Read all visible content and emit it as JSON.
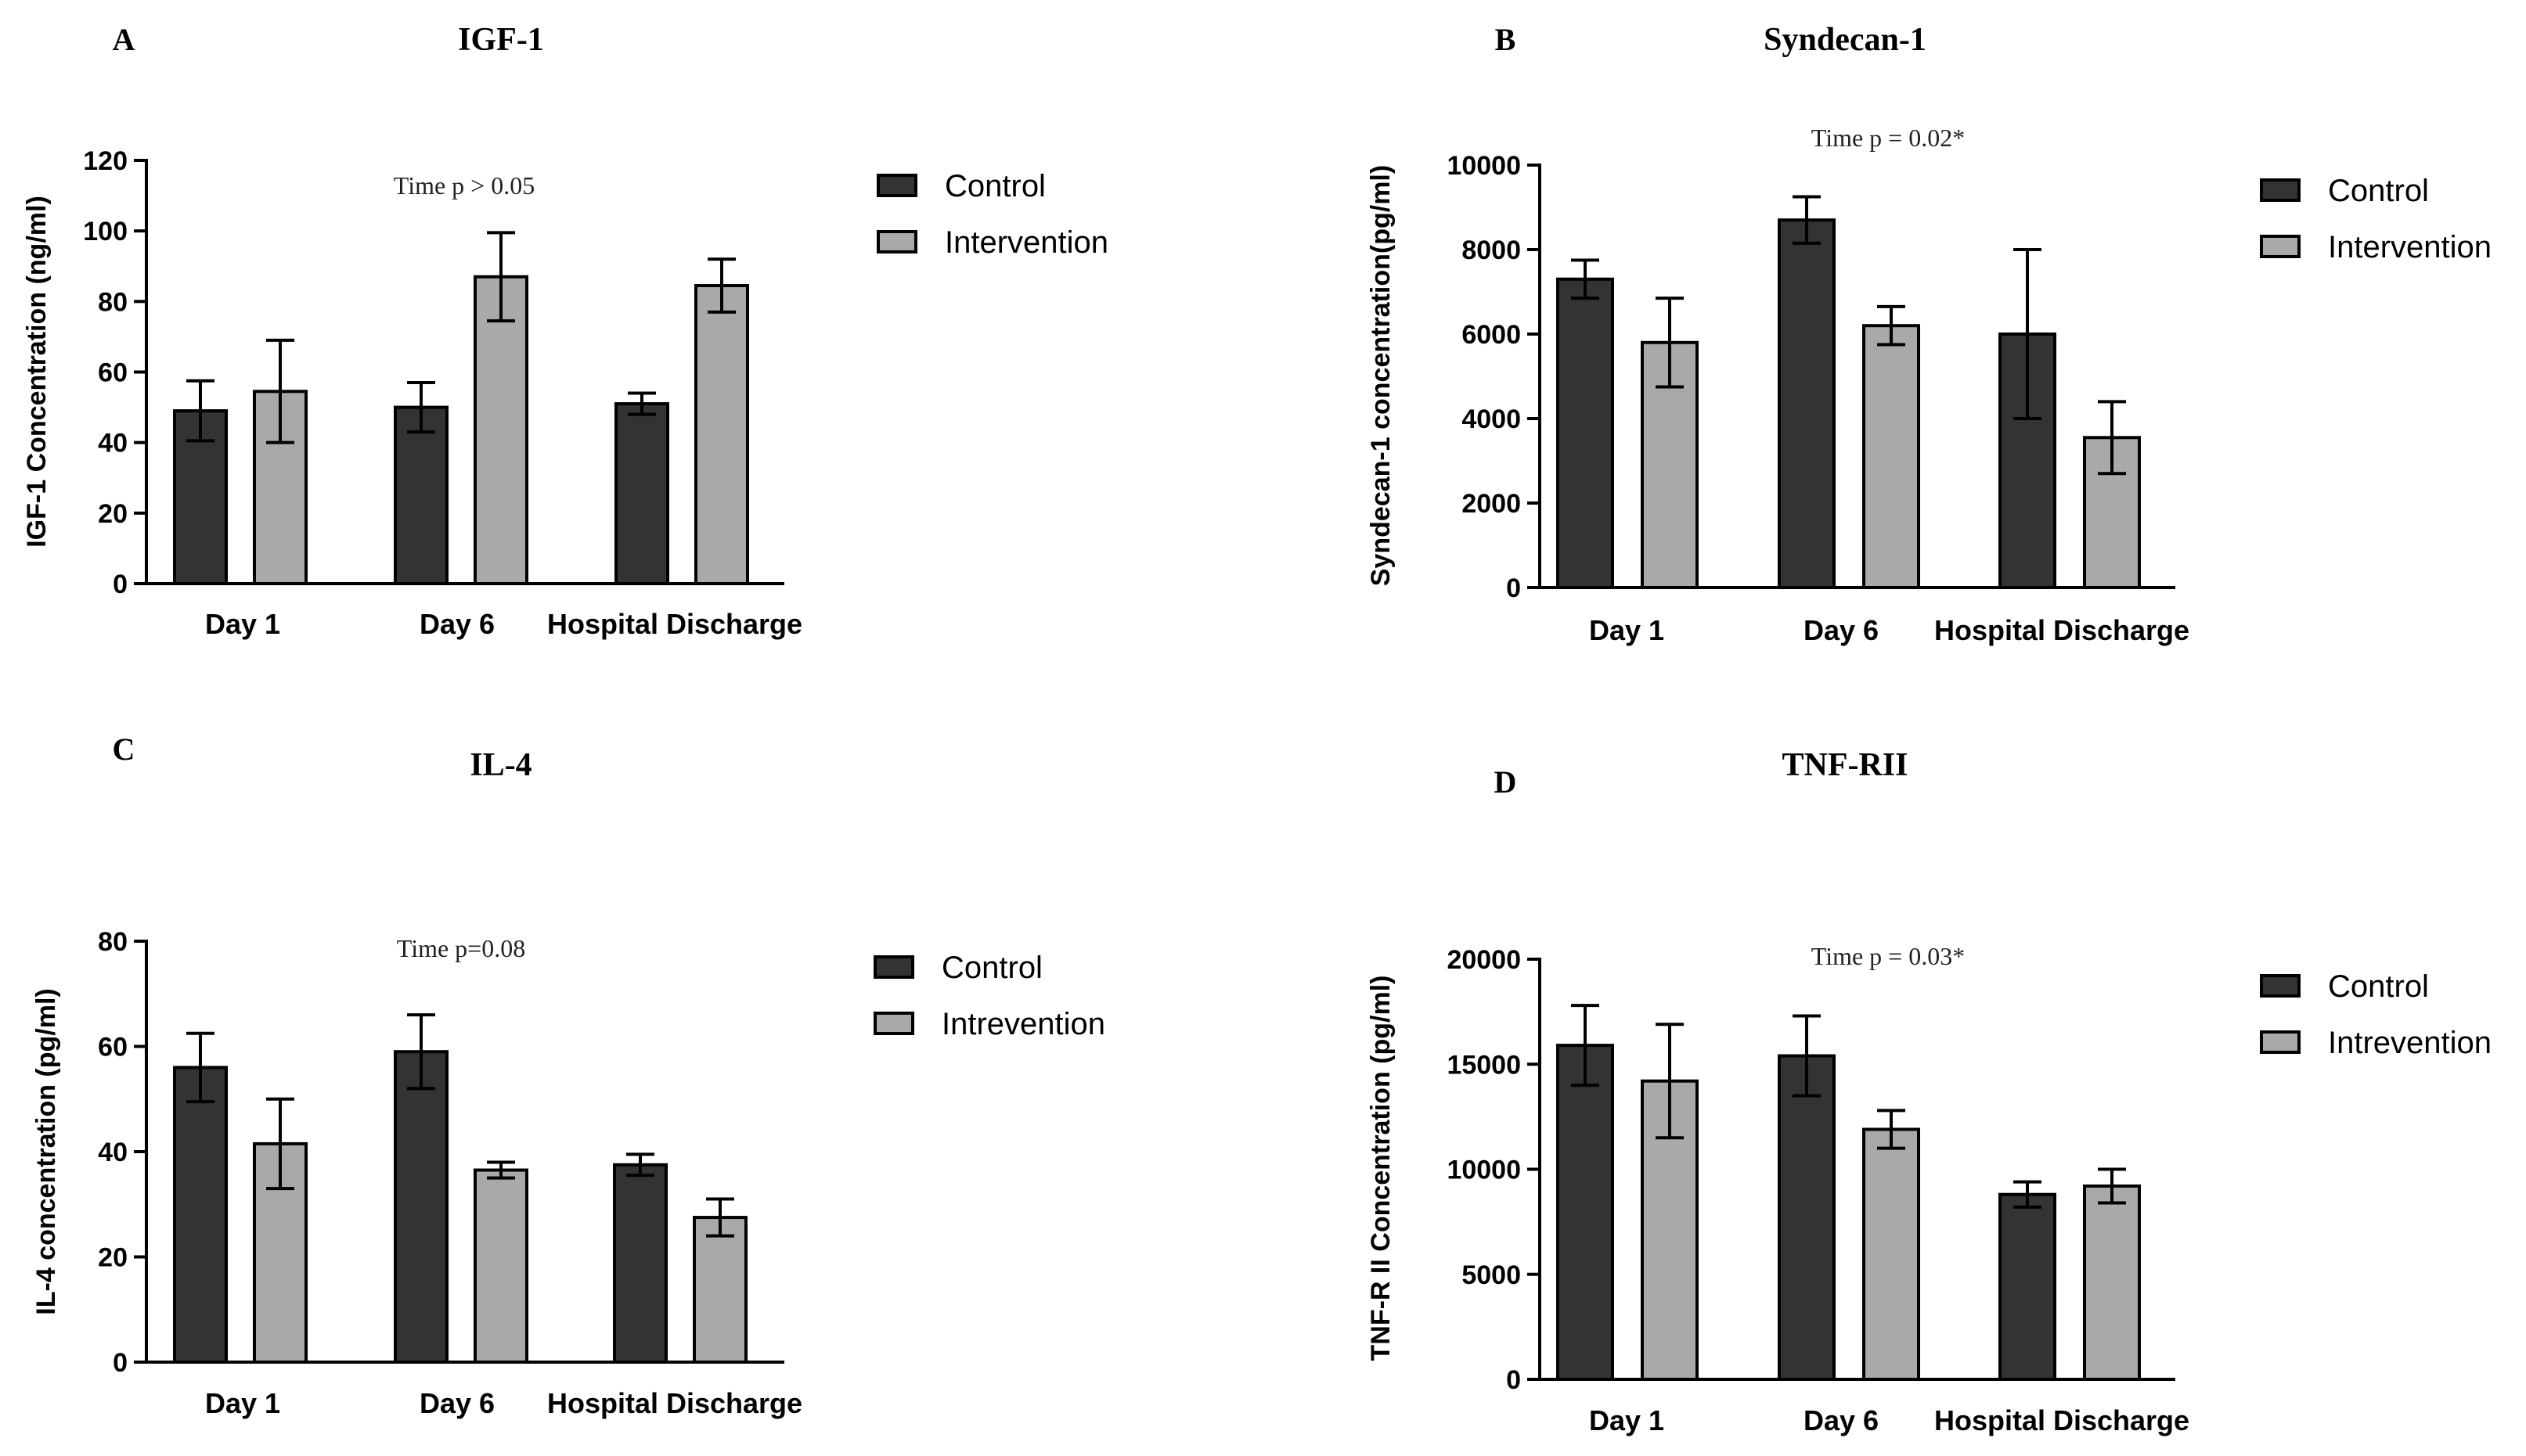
{
  "chart_data": [
    {
      "type": "bar",
      "panel_letter": "A",
      "title": "IGF-1",
      "annotation": "Time p > 0.05",
      "ylabel": "IGF-1 Concentration (ng/ml)",
      "categories": [
        "Day 1",
        "Day 6",
        "Hospital Discharge"
      ],
      "ylim": [
        0,
        120
      ],
      "yticks": [
        "0",
        "20",
        "40",
        "60",
        "80",
        "100",
        "120"
      ],
      "series": [
        {
          "name": "Control",
          "color": "#333333",
          "values": [
            49,
            50,
            51
          ],
          "errors": [
            8.5,
            7,
            3
          ]
        },
        {
          "name": "Intervention",
          "color": "#a9a9a9",
          "values": [
            54.5,
            87,
            84.5
          ],
          "errors": [
            14.5,
            12.5,
            7.5
          ]
        }
      ],
      "legend": [
        "Control",
        "Intervention"
      ]
    },
    {
      "type": "bar",
      "panel_letter": "B",
      "title": "Syndecan-1",
      "annotation": "Time p = 0.02*",
      "ylabel": "Syndecan-1 concentration(pg/ml)",
      "categories": [
        "Day 1",
        "Day 6",
        "Hospital Discharge"
      ],
      "ylim": [
        0,
        10000
      ],
      "yticks": [
        "0",
        "2000",
        "4000",
        "6000",
        "8000",
        "10000"
      ],
      "series": [
        {
          "name": "Control",
          "color": "#333333",
          "values": [
            7300,
            8700,
            6000
          ],
          "errors": [
            450,
            550,
            2000
          ]
        },
        {
          "name": "Intervention",
          "color": "#a9a9a9",
          "values": [
            5800,
            6200,
            3550
          ],
          "errors": [
            1050,
            450,
            850
          ]
        }
      ],
      "legend": [
        "Control",
        "Intervention"
      ]
    },
    {
      "type": "bar",
      "panel_letter": "C",
      "title": "IL-4",
      "annotation": "Time p=0.08",
      "ylabel": "IL-4 concentration (pg/ml)",
      "categories": [
        "Day 1",
        "Day 6",
        "Hospital Discharge"
      ],
      "ylim": [
        0,
        80
      ],
      "yticks": [
        "0",
        "20",
        "40",
        "60",
        "80"
      ],
      "series": [
        {
          "name": "Control",
          "color": "#333333",
          "values": [
            56,
            59,
            37.5
          ],
          "errors": [
            6.5,
            7,
            2
          ]
        },
        {
          "name": "Intrevention",
          "color": "#a9a9a9",
          "values": [
            41.5,
            36.5,
            27.5
          ],
          "errors": [
            8.5,
            1.5,
            3.5
          ]
        }
      ],
      "legend": [
        "Control",
        "Intrevention"
      ]
    },
    {
      "type": "bar",
      "panel_letter": "D",
      "title": "TNF-RII",
      "annotation": "Time p = 0.03*",
      "ylabel": "TNF-R II Concentration (pg/ml)",
      "categories": [
        "Day 1",
        "Day 6",
        "Hospital Discharge"
      ],
      "ylim": [
        0,
        20000
      ],
      "yticks": [
        "0",
        "5000",
        "10000",
        "15000",
        "20000"
      ],
      "series": [
        {
          "name": "Control",
          "color": "#333333",
          "values": [
            15900,
            15400,
            8800
          ],
          "errors": [
            1900,
            1900,
            600
          ]
        },
        {
          "name": "Intrevention",
          "color": "#a9a9a9",
          "values": [
            14200,
            11900,
            9200
          ],
          "errors": [
            2700,
            900,
            800
          ]
        }
      ],
      "legend": [
        "Control",
        "Intrevention"
      ]
    }
  ]
}
